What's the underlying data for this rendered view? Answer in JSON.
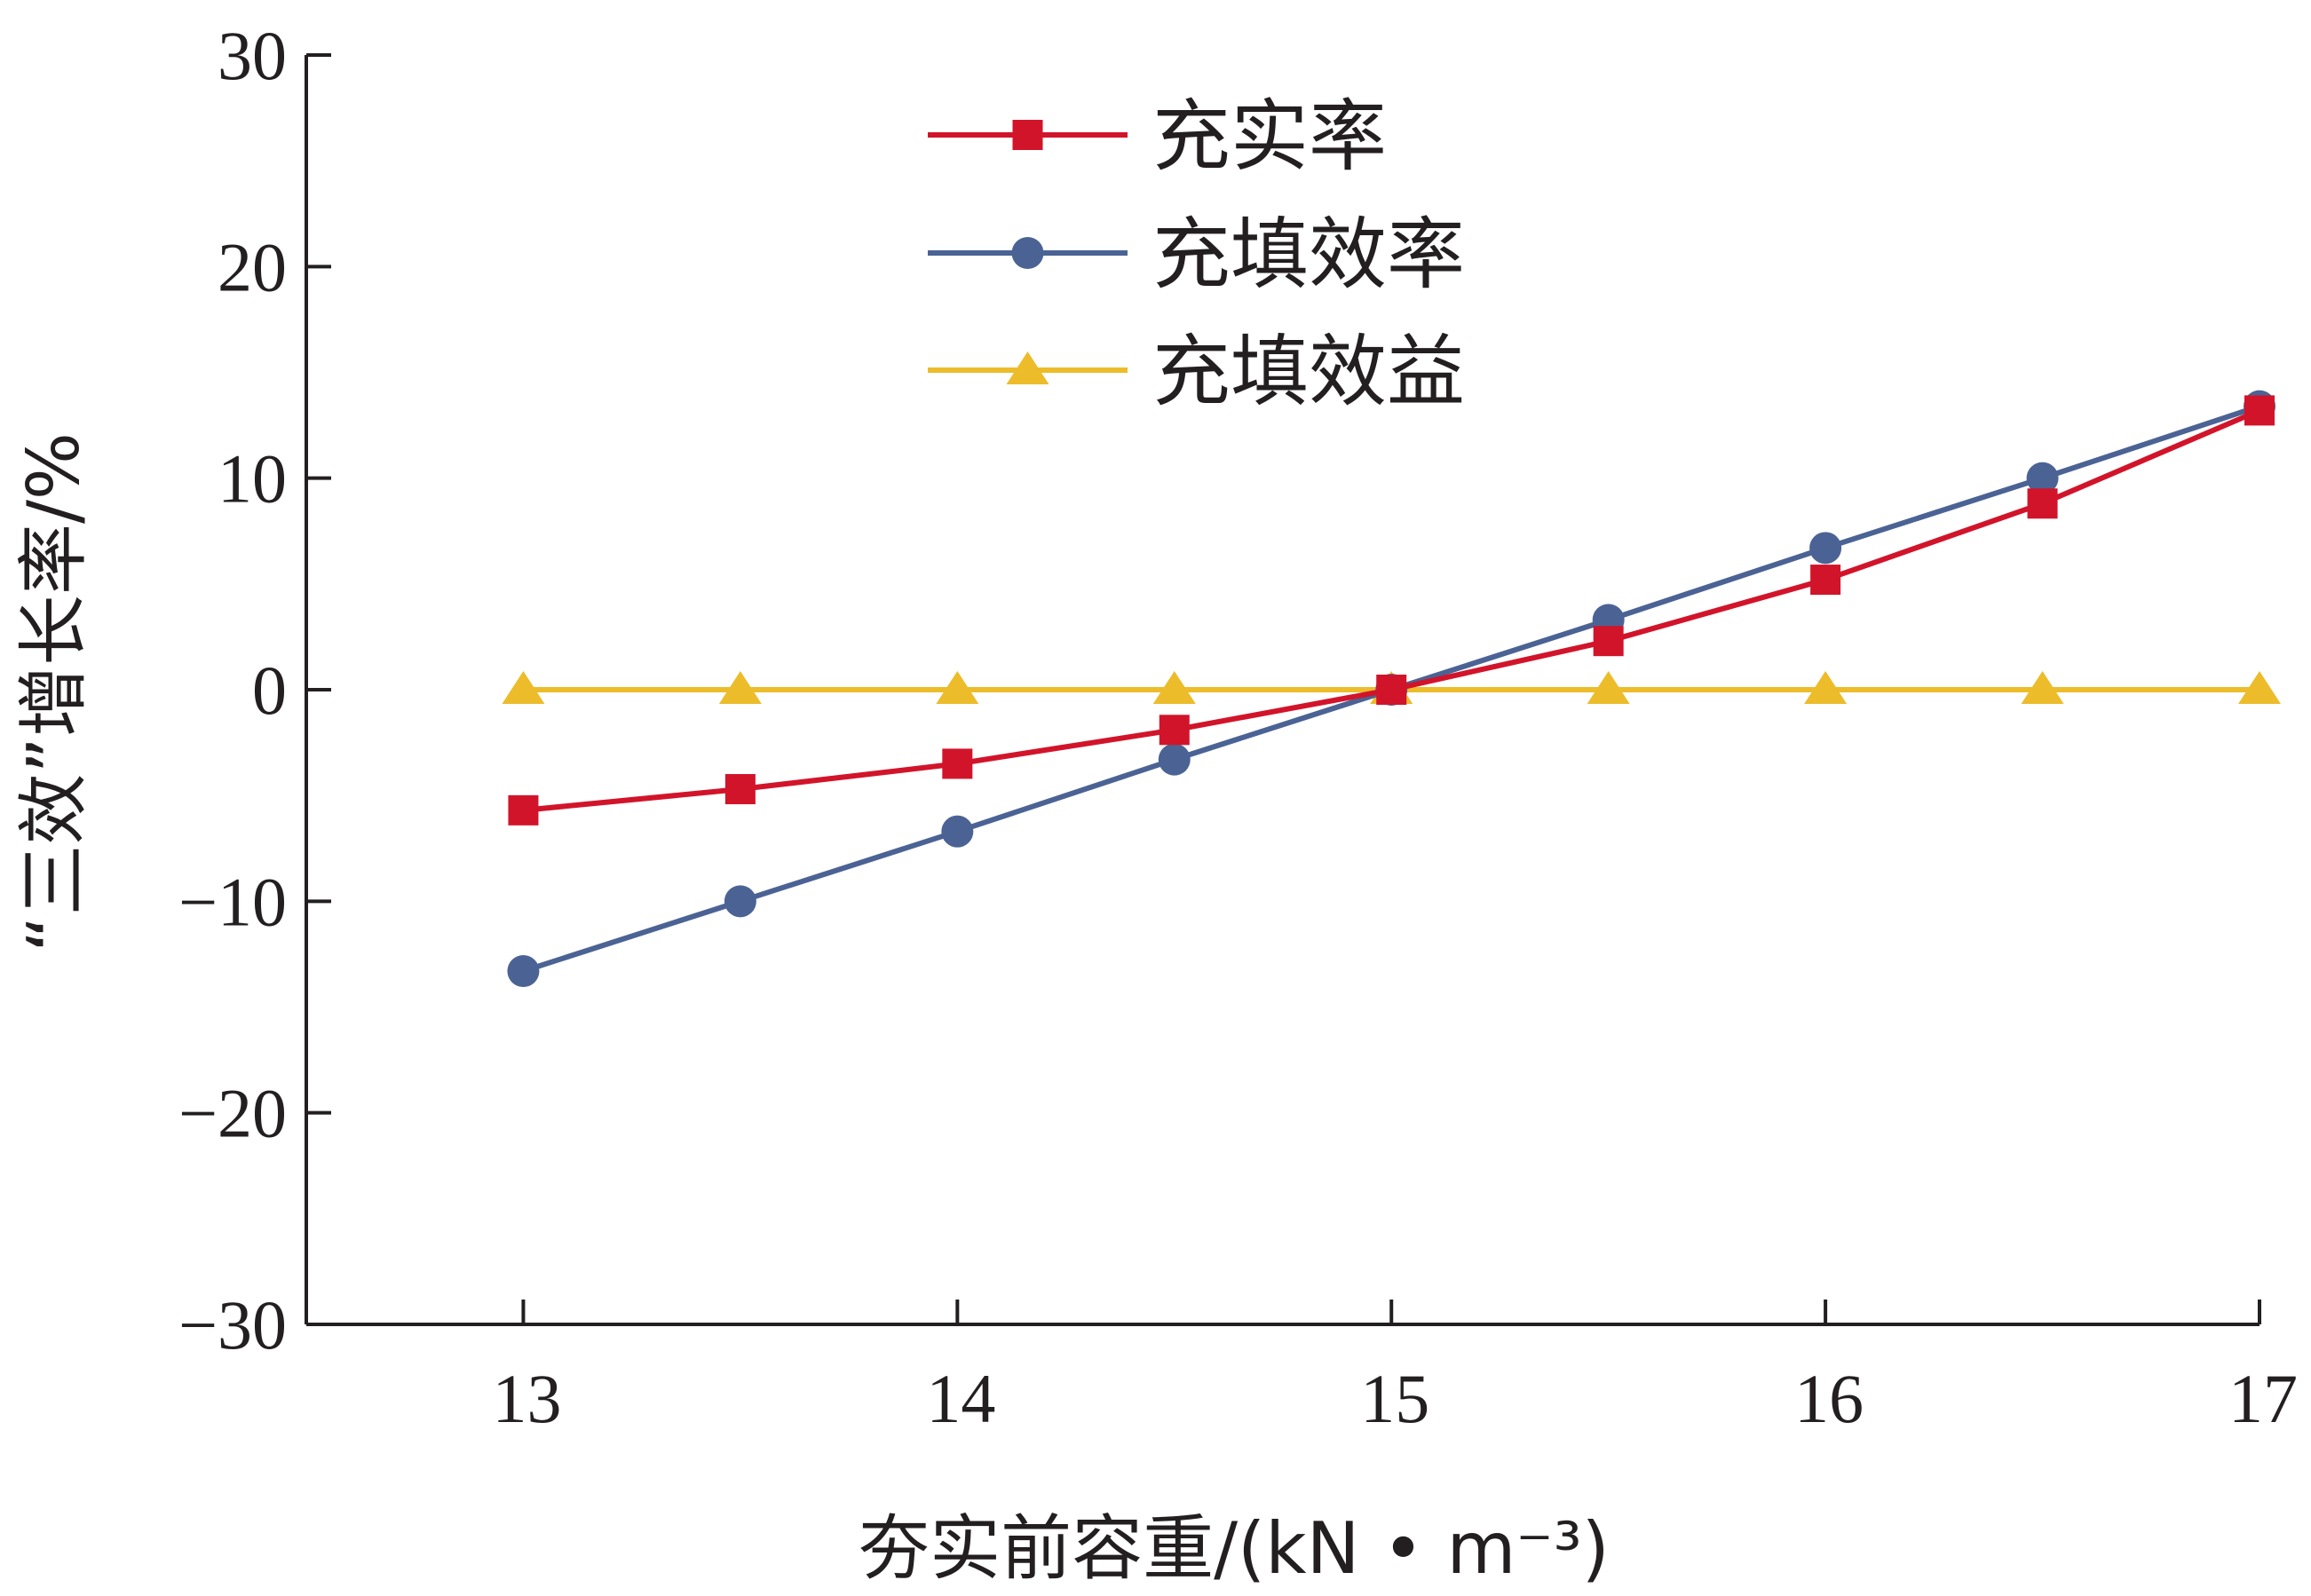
{
  "chart_data": {
    "type": "line",
    "xlabel": "夯实前容重/(kN • m⁻³)",
    "ylabel": "“三效”增长率/%",
    "xlim": [
      12.5,
      17
    ],
    "ylim": [
      -30,
      30
    ],
    "x_ticks": [
      13,
      14,
      15,
      16,
      17
    ],
    "y_ticks": [
      -30,
      -20,
      -10,
      0,
      10,
      20,
      30
    ],
    "x_tick_labels": [
      "13",
      "14",
      "15",
      "16",
      "17"
    ],
    "y_tick_labels": [
      "−30",
      "−20",
      "−10",
      "0",
      "10",
      "20",
      "30"
    ],
    "x": [
      13,
      13.5,
      14,
      14.5,
      15,
      15.5,
      16,
      16.5,
      17
    ],
    "grid": false,
    "legend_position": "top-center",
    "series": [
      {
        "name": "充实率",
        "color": "#d2142a",
        "marker": "square",
        "values": [
          -5.7,
          -4.7,
          -3.5,
          -1.9,
          0,
          2.3,
          5.2,
          8.8,
          13.2
        ]
      },
      {
        "name": "充填效率",
        "color": "#4b6394",
        "marker": "circle",
        "values": [
          -13.3,
          -10.0,
          -6.7,
          -3.3,
          0,
          3.3,
          6.7,
          10.0,
          13.4
        ]
      },
      {
        "name": "充填效益",
        "color": "#ecbc2a",
        "marker": "triangle",
        "values": [
          0,
          0,
          0,
          0,
          0,
          0,
          0,
          0,
          0
        ]
      }
    ]
  }
}
